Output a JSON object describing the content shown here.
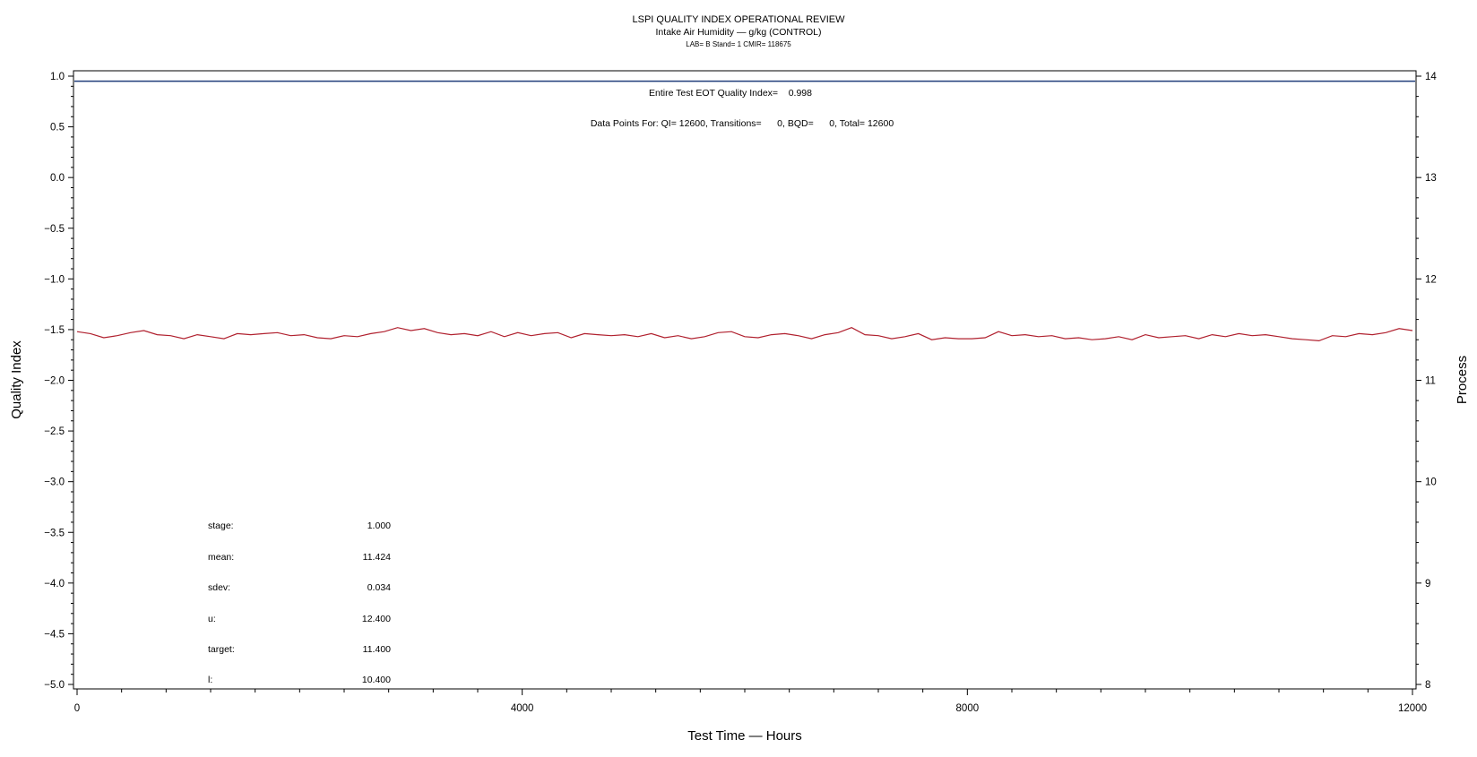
{
  "chart_data": {
    "type": "line",
    "title": "LSPI QUALITY INDEX OPERATIONAL REVIEW",
    "subtitle": "Intake Air Humidity — g/kg (CONTROL)",
    "subsubtitle": "LAB= B Stand= 1 CMIR= 118675",
    "xlabel": "Test Time — Hours",
    "ylabel_left": "Quality Index",
    "ylabel_right": "Process",
    "xlim": [
      0,
      12000
    ],
    "ylim_left": [
      -5.0,
      1.0
    ],
    "ylim_right": [
      8,
      14
    ],
    "x_ticks": [
      "0",
      "4000",
      "8000",
      "12000"
    ],
    "x_tick_values": [
      0,
      4000,
      8000,
      12000
    ],
    "y_ticks_left": [
      "1.0",
      "0.5",
      "0.0",
      "−0.5",
      "−1.0",
      "−1.5",
      "−2.0",
      "−2.5",
      "−3.0",
      "−3.5",
      "−4.0",
      "−4.5",
      "−5.0"
    ],
    "y_tick_values_left": [
      1.0,
      0.5,
      0.0,
      -0.5,
      -1.0,
      -1.5,
      -2.0,
      -2.5,
      -3.0,
      -3.5,
      -4.0,
      -4.5,
      -5.0
    ],
    "y_ticks_right": [
      "14",
      "13",
      "12",
      "11",
      "10",
      "9",
      "8"
    ],
    "y_tick_values_right": [
      14,
      13,
      12,
      11,
      10,
      9,
      8
    ],
    "annotations": [
      "Entire Test EOT Quality Index=    0.998",
      "Data Points For: QI= 12600, Transitions=      0, BQD=      0, Total= 12600"
    ],
    "reference_line": {
      "axis": "left",
      "y": 0.95,
      "color": "#1f3d7a"
    },
    "grid": false,
    "series": [
      {
        "axis": "right",
        "color": "#b0202e",
        "x": [
          0,
          120,
          240,
          360,
          480,
          600,
          720,
          840,
          960,
          1080,
          1200,
          1320,
          1440,
          1560,
          1680,
          1800,
          1920,
          2040,
          2160,
          2280,
          2400,
          2520,
          2640,
          2760,
          2880,
          3000,
          3120,
          3240,
          3360,
          3480,
          3600,
          3720,
          3840,
          3960,
          4080,
          4200,
          4320,
          4440,
          4560,
          4680,
          4800,
          4920,
          5040,
          5160,
          5280,
          5400,
          5520,
          5640,
          5760,
          5880,
          6000,
          6120,
          6240,
          6360,
          6480,
          6600,
          6720,
          6840,
          6960,
          7080,
          7200,
          7320,
          7440,
          7560,
          7680,
          7800,
          7920,
          8040,
          8160,
          8280,
          8400,
          8520,
          8640,
          8760,
          8880,
          9000,
          9120,
          9240,
          9360,
          9480,
          9600,
          9720,
          9840,
          9960,
          10080,
          10200,
          10320,
          10440,
          10560,
          10680,
          10800,
          10920,
          11040,
          11160,
          11280,
          11400,
          11520,
          11640,
          11760,
          11880,
          12000
        ],
        "values": [
          11.48,
          11.46,
          11.42,
          11.44,
          11.47,
          11.49,
          11.45,
          11.44,
          11.41,
          11.45,
          11.43,
          11.41,
          11.46,
          11.45,
          11.46,
          11.47,
          11.44,
          11.45,
          11.42,
          11.41,
          11.44,
          11.43,
          11.46,
          11.48,
          11.52,
          11.49,
          11.51,
          11.47,
          11.45,
          11.46,
          11.44,
          11.48,
          11.43,
          11.47,
          11.44,
          11.46,
          11.47,
          11.42,
          11.46,
          11.45,
          11.44,
          11.45,
          11.43,
          11.46,
          11.42,
          11.44,
          11.41,
          11.43,
          11.47,
          11.48,
          11.43,
          11.42,
          11.45,
          11.46,
          11.44,
          11.41,
          11.45,
          11.47,
          11.52,
          11.45,
          11.44,
          11.41,
          11.43,
          11.46,
          11.4,
          11.42,
          11.41,
          11.41,
          11.42,
          11.48,
          11.44,
          11.45,
          11.43,
          11.44,
          11.41,
          11.42,
          11.4,
          11.41,
          11.43,
          11.4,
          11.45,
          11.42,
          11.43,
          11.44,
          11.41,
          11.45,
          11.43,
          11.46,
          11.44,
          11.45,
          11.43,
          11.41,
          11.4,
          11.39,
          11.44,
          11.43,
          11.46,
          11.45,
          11.47,
          11.51,
          11.49
        ]
      }
    ],
    "stats": [
      {
        "label": "stage:",
        "value": "1.000"
      },
      {
        "label": "mean:",
        "value": "11.424"
      },
      {
        "label": "sdev:",
        "value": "0.034"
      },
      {
        "label": "u:",
        "value": "12.400"
      },
      {
        "label": "target:",
        "value": "11.400"
      },
      {
        "label": "l:",
        "value": "10.400"
      }
    ]
  }
}
